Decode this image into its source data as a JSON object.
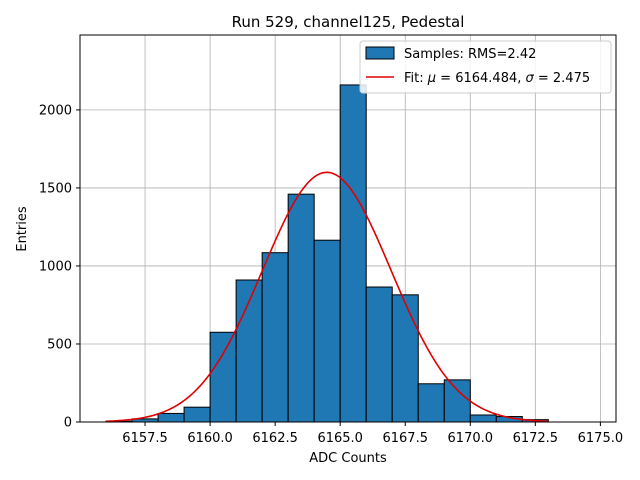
{
  "chart_data": {
    "type": "bar",
    "title": "Run 529, channel125, Pedestal",
    "xlabel": "ADC Counts",
    "ylabel": "Entries",
    "xlim": [
      6155.0,
      6175.6
    ],
    "ylim": [
      0,
      2480
    ],
    "xticks": [
      6157.5,
      6160.0,
      6162.5,
      6165.0,
      6167.5,
      6170.0,
      6172.5,
      6175.0
    ],
    "xtick_labels": [
      "6157.5",
      "6160.0",
      "6162.5",
      "6165.0",
      "6167.5",
      "6170.0",
      "6172.5",
      "6175.0"
    ],
    "yticks": [
      0,
      500,
      1000,
      1500,
      2000
    ],
    "ytick_labels": [
      "0",
      "500",
      "1000",
      "1500",
      "2000"
    ],
    "grid": true,
    "legend_position": "top-right",
    "histogram": {
      "name": "Samples: RMS=2.42",
      "color": "#1f77b4",
      "bins": [
        {
          "x0": 6156,
          "x1": 6157,
          "value": 5
        },
        {
          "x0": 6157,
          "x1": 6158,
          "value": 20
        },
        {
          "x0": 6158,
          "x1": 6159,
          "value": 55
        },
        {
          "x0": 6159,
          "x1": 6160,
          "value": 95
        },
        {
          "x0": 6160,
          "x1": 6161,
          "value": 575
        },
        {
          "x0": 6161,
          "x1": 6162,
          "value": 910
        },
        {
          "x0": 6162,
          "x1": 6163,
          "value": 1085
        },
        {
          "x0": 6163,
          "x1": 6164,
          "value": 1460
        },
        {
          "x0": 6164,
          "x1": 6165,
          "value": 1165
        },
        {
          "x0": 6165,
          "x1": 6166,
          "value": 2160
        },
        {
          "x0": 6166,
          "x1": 6167,
          "value": 865
        },
        {
          "x0": 6167,
          "x1": 6168,
          "value": 815
        },
        {
          "x0": 6168,
          "x1": 6169,
          "value": 245
        },
        {
          "x0": 6169,
          "x1": 6170,
          "value": 270
        },
        {
          "x0": 6170,
          "x1": 6171,
          "value": 45
        },
        {
          "x0": 6171,
          "x1": 6172,
          "value": 35
        },
        {
          "x0": 6172,
          "x1": 6173,
          "value": 15
        }
      ]
    },
    "fit": {
      "name_prefix": "Fit: ",
      "mu_symbol": "μ",
      "sigma_symbol": "σ",
      "mu_text": " = 6164.484, ",
      "sigma_text": " = 2.475",
      "mu": 6164.484,
      "sigma": 2.475,
      "amplitude": 1600,
      "x_range": [
        6156,
        6173
      ],
      "color": "#e00000"
    }
  }
}
